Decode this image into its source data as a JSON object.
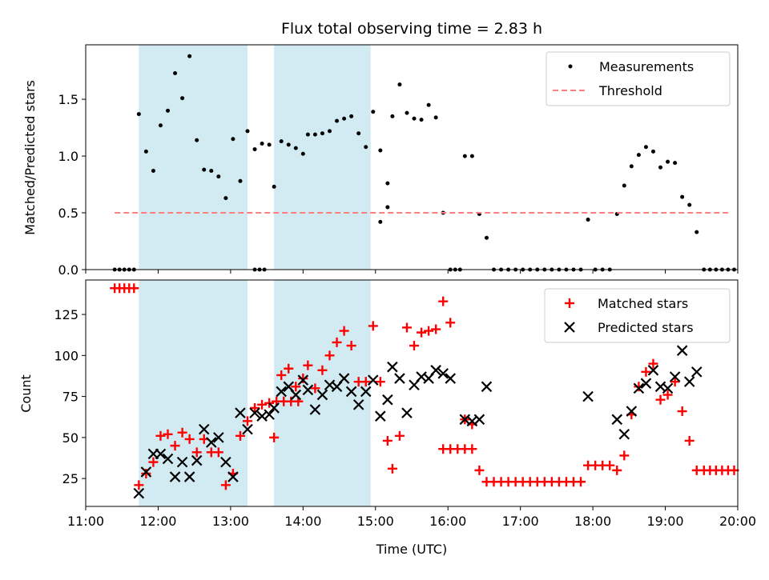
{
  "title": "Flux total observing time = 2.83 h",
  "colors": {
    "measurement": "#000000",
    "threshold": "#ff7f7f",
    "matched": "#ff0000",
    "predicted": "#000000",
    "band": "#add8e6"
  },
  "chart_data": [
    {
      "type": "scatter",
      "panel": "top",
      "ylabel": "Matched/Predicted stars",
      "xlabel": "",
      "ylim": [
        0,
        1.98
      ],
      "yticks": [
        "0.0",
        "0.5",
        "1.0",
        "1.5"
      ],
      "xlim": [
        "11:00",
        "20:00"
      ],
      "grid": false,
      "legend_position": "top-right",
      "shaded_intervals": [
        [
          "11:44",
          "13:14"
        ],
        [
          "13:36",
          "14:56"
        ]
      ],
      "series": [
        {
          "name": "Measurements",
          "marker": "dot",
          "points": [
            [
              "11:24",
              0
            ],
            [
              "11:28",
              0
            ],
            [
              "11:32",
              0
            ],
            [
              "11:36",
              0
            ],
            [
              "11:40",
              0
            ],
            [
              "11:44",
              1.37
            ],
            [
              "11:50",
              1.04
            ],
            [
              "11:56",
              0.87
            ],
            [
              "12:02",
              1.27
            ],
            [
              "12:08",
              1.4
            ],
            [
              "12:14",
              1.73
            ],
            [
              "12:20",
              1.51
            ],
            [
              "12:26",
              1.88
            ],
            [
              "12:32",
              1.14
            ],
            [
              "12:38",
              0.88
            ],
            [
              "12:44",
              0.87
            ],
            [
              "12:50",
              0.82
            ],
            [
              "12:56",
              0.63
            ],
            [
              "13:02",
              1.15
            ],
            [
              "13:08",
              0.78
            ],
            [
              "13:14",
              1.22
            ],
            [
              "13:20",
              1.06
            ],
            [
              "13:26",
              1.11
            ],
            [
              "13:32",
              1.1
            ],
            [
              "13:20",
              0
            ],
            [
              "13:24",
              0
            ],
            [
              "13:28",
              0
            ],
            [
              "13:36",
              0.73
            ],
            [
              "13:42",
              1.13
            ],
            [
              "13:48",
              1.1
            ],
            [
              "13:54",
              1.07
            ],
            [
              "14:00",
              1.02
            ],
            [
              "14:04",
              1.19
            ],
            [
              "14:10",
              1.19
            ],
            [
              "14:16",
              1.2
            ],
            [
              "14:22",
              1.22
            ],
            [
              "14:28",
              1.31
            ],
            [
              "14:34",
              1.33
            ],
            [
              "14:40",
              1.35
            ],
            [
              "14:46",
              1.2
            ],
            [
              "14:52",
              1.08
            ],
            [
              "14:58",
              1.39
            ],
            [
              "15:04",
              1.05
            ],
            [
              "15:10",
              0.76
            ],
            [
              "15:04",
              0.42
            ],
            [
              "15:10",
              0.55
            ],
            [
              "15:14",
              1.35
            ],
            [
              "15:20",
              1.63
            ],
            [
              "15:26",
              1.38
            ],
            [
              "15:32",
              1.33
            ],
            [
              "15:38",
              1.32
            ],
            [
              "15:44",
              1.45
            ],
            [
              "15:50",
              1.34
            ],
            [
              "15:56",
              0.5
            ],
            [
              "16:02",
              0
            ],
            [
              "16:06",
              0
            ],
            [
              "16:10",
              0
            ],
            [
              "16:14",
              1.0
            ],
            [
              "16:20",
              1.0
            ],
            [
              "16:26",
              0.49
            ],
            [
              "16:32",
              0.28
            ],
            [
              "16:38",
              0
            ],
            [
              "16:44",
              0
            ],
            [
              "16:50",
              0
            ],
            [
              "16:56",
              0
            ],
            [
              "17:02",
              0
            ],
            [
              "17:08",
              0
            ],
            [
              "17:14",
              0
            ],
            [
              "17:20",
              0
            ],
            [
              "17:26",
              0
            ],
            [
              "17:32",
              0
            ],
            [
              "17:38",
              0
            ],
            [
              "17:44",
              0
            ],
            [
              "17:50",
              0
            ],
            [
              "17:56",
              0.44
            ],
            [
              "18:02",
              0
            ],
            [
              "18:08",
              0
            ],
            [
              "18:14",
              0
            ],
            [
              "18:20",
              0.49
            ],
            [
              "18:26",
              0.74
            ],
            [
              "18:32",
              0.91
            ],
            [
              "18:38",
              1.01
            ],
            [
              "18:44",
              1.08
            ],
            [
              "18:50",
              1.04
            ],
            [
              "18:56",
              0.9
            ],
            [
              "19:02",
              0.95
            ],
            [
              "19:08",
              0.94
            ],
            [
              "19:14",
              0.64
            ],
            [
              "19:20",
              0.57
            ],
            [
              "19:26",
              0.33
            ],
            [
              "19:32",
              0
            ],
            [
              "19:37",
              0
            ],
            [
              "19:42",
              0
            ],
            [
              "19:47",
              0
            ],
            [
              "19:52",
              0
            ],
            [
              "19:57",
              0
            ]
          ]
        },
        {
          "name": "Threshold",
          "marker": "dashed-line",
          "points": [
            [
              "11:24",
              0.5
            ],
            [
              "19:52",
              0.5
            ]
          ]
        }
      ]
    },
    {
      "type": "scatter",
      "panel": "bottom",
      "ylabel": "Count",
      "xlabel": "Time (UTC)",
      "ylim": [
        8,
        146
      ],
      "yticks": [
        "25",
        "50",
        "75",
        "100",
        "125"
      ],
      "xticks": [
        "11:00",
        "12:00",
        "13:00",
        "14:00",
        "15:00",
        "16:00",
        "17:00",
        "18:00",
        "19:00",
        "20:00"
      ],
      "xlim": [
        "11:00",
        "20:00"
      ],
      "grid": false,
      "legend_position": "top-right",
      "shaded_intervals": [
        [
          "11:44",
          "13:14"
        ],
        [
          "13:36",
          "14:56"
        ]
      ],
      "series": [
        {
          "name": "Matched stars",
          "marker": "plus",
          "points": [
            [
              "11:24",
              141
            ],
            [
              "11:28",
              141
            ],
            [
              "11:32",
              141
            ],
            [
              "11:36",
              141
            ],
            [
              "11:40",
              141
            ],
            [
              "11:44",
              21
            ],
            [
              "11:50",
              28
            ],
            [
              "11:56",
              35
            ],
            [
              "12:02",
              51
            ],
            [
              "12:08",
              52
            ],
            [
              "12:14",
              45
            ],
            [
              "12:20",
              53
            ],
            [
              "12:26",
              49
            ],
            [
              "12:32",
              41
            ],
            [
              "12:38",
              49
            ],
            [
              "12:44",
              41
            ],
            [
              "12:50",
              41
            ],
            [
              "12:56",
              21
            ],
            [
              "13:02",
              28
            ],
            [
              "13:08",
              51
            ],
            [
              "13:14",
              60
            ],
            [
              "13:20",
              68
            ],
            [
              "13:26",
              70
            ],
            [
              "13:32",
              71
            ],
            [
              "13:38",
              72
            ],
            [
              "13:44",
              72
            ],
            [
              "13:50",
              72
            ],
            [
              "13:56",
              72
            ],
            [
              "13:36",
              50
            ],
            [
              "13:42",
              88
            ],
            [
              "13:48",
              92
            ],
            [
              "13:54",
              81
            ],
            [
              "14:00",
              86
            ],
            [
              "14:04",
              94
            ],
            [
              "14:10",
              80
            ],
            [
              "14:16",
              91
            ],
            [
              "14:22",
              100
            ],
            [
              "14:28",
              108
            ],
            [
              "14:34",
              115
            ],
            [
              "14:40",
              106
            ],
            [
              "14:46",
              84
            ],
            [
              "14:52",
              84
            ],
            [
              "14:58",
              118
            ],
            [
              "15:04",
              84
            ],
            [
              "15:10",
              48
            ],
            [
              "15:14",
              31
            ],
            [
              "15:20",
              51
            ],
            [
              "15:26",
              117
            ],
            [
              "15:32",
              106
            ],
            [
              "15:38",
              114
            ],
            [
              "15:44",
              115
            ],
            [
              "15:50",
              116
            ],
            [
              "15:56",
              133
            ],
            [
              "16:02",
              120
            ],
            [
              "15:56",
              43
            ],
            [
              "16:02",
              43
            ],
            [
              "16:08",
              43
            ],
            [
              "16:14",
              43
            ],
            [
              "16:20",
              43
            ],
            [
              "16:14",
              61
            ],
            [
              "16:20",
              58
            ],
            [
              "16:26",
              30
            ],
            [
              "16:32",
              23
            ],
            [
              "16:38",
              23
            ],
            [
              "16:44",
              23
            ],
            [
              "16:50",
              23
            ],
            [
              "16:56",
              23
            ],
            [
              "17:02",
              23
            ],
            [
              "17:08",
              23
            ],
            [
              "17:14",
              23
            ],
            [
              "17:20",
              23
            ],
            [
              "17:26",
              23
            ],
            [
              "17:32",
              23
            ],
            [
              "17:38",
              23
            ],
            [
              "17:44",
              23
            ],
            [
              "17:50",
              23
            ],
            [
              "17:56",
              33
            ],
            [
              "18:02",
              33
            ],
            [
              "18:08",
              33
            ],
            [
              "18:14",
              33
            ],
            [
              "18:20",
              30
            ],
            [
              "18:26",
              39
            ],
            [
              "18:32",
              64
            ],
            [
              "18:38",
              81
            ],
            [
              "18:44",
              90
            ],
            [
              "18:50",
              95
            ],
            [
              "18:56",
              73
            ],
            [
              "19:02",
              76
            ],
            [
              "19:08",
              84
            ],
            [
              "19:14",
              66
            ],
            [
              "19:20",
              48
            ],
            [
              "19:26",
              30
            ],
            [
              "19:32",
              30
            ],
            [
              "19:37",
              30
            ],
            [
              "19:42",
              30
            ],
            [
              "19:47",
              30
            ],
            [
              "19:52",
              30
            ],
            [
              "19:57",
              30
            ]
          ]
        },
        {
          "name": "Predicted stars",
          "marker": "x",
          "points": [
            [
              "11:44",
              16
            ],
            [
              "11:50",
              29
            ],
            [
              "11:56",
              40
            ],
            [
              "12:02",
              40
            ],
            [
              "12:08",
              37
            ],
            [
              "12:14",
              26
            ],
            [
              "12:20",
              35
            ],
            [
              "12:26",
              26
            ],
            [
              "12:32",
              36
            ],
            [
              "12:38",
              55
            ],
            [
              "12:44",
              47
            ],
            [
              "12:50",
              50
            ],
            [
              "12:56",
              35
            ],
            [
              "13:02",
              26
            ],
            [
              "13:08",
              65
            ],
            [
              "13:14",
              55
            ],
            [
              "13:20",
              65
            ],
            [
              "13:26",
              63
            ],
            [
              "13:32",
              64
            ],
            [
              "13:36",
              68
            ],
            [
              "13:42",
              78
            ],
            [
              "13:48",
              81
            ],
            [
              "13:54",
              76
            ],
            [
              "14:00",
              85
            ],
            [
              "14:04",
              79
            ],
            [
              "14:10",
              67
            ],
            [
              "14:16",
              76
            ],
            [
              "14:22",
              82
            ],
            [
              "14:28",
              81
            ],
            [
              "14:34",
              86
            ],
            [
              "14:40",
              78
            ],
            [
              "14:46",
              70
            ],
            [
              "14:52",
              78
            ],
            [
              "14:58",
              85
            ],
            [
              "15:04",
              63
            ],
            [
              "15:10",
              73
            ],
            [
              "15:14",
              93
            ],
            [
              "15:20",
              86
            ],
            [
              "15:26",
              65
            ],
            [
              "15:32",
              82
            ],
            [
              "15:38",
              87
            ],
            [
              "15:44",
              86
            ],
            [
              "15:50",
              91
            ],
            [
              "15:56",
              89
            ],
            [
              "16:02",
              86
            ],
            [
              "16:14",
              61
            ],
            [
              "16:20",
              60
            ],
            [
              "16:26",
              61
            ],
            [
              "16:32",
              81
            ],
            [
              "17:56",
              75
            ],
            [
              "18:20",
              61
            ],
            [
              "18:26",
              52
            ],
            [
              "18:32",
              66
            ],
            [
              "18:38",
              80
            ],
            [
              "18:44",
              83
            ],
            [
              "18:50",
              91
            ],
            [
              "18:56",
              81
            ],
            [
              "19:02",
              80
            ],
            [
              "19:08",
              87
            ],
            [
              "19:14",
              103
            ],
            [
              "19:20",
              84
            ],
            [
              "19:26",
              90
            ]
          ]
        }
      ]
    }
  ]
}
